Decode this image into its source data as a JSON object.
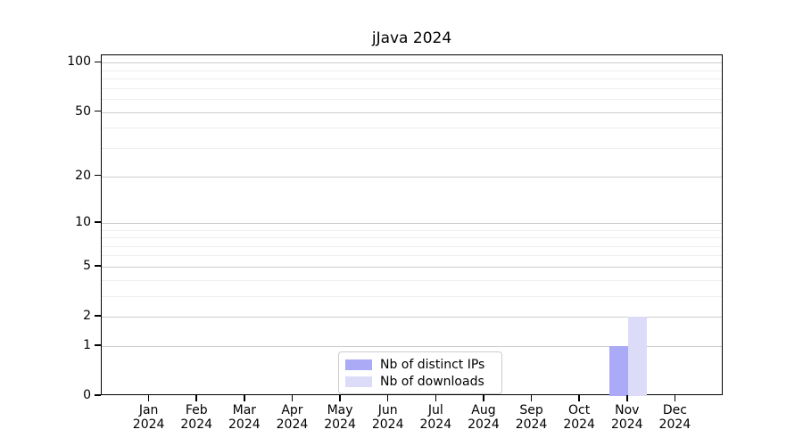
{
  "figure": {
    "background": "#ffffff"
  },
  "chart_data": {
    "type": "bar",
    "title": "jJava 2024",
    "categories": [
      {
        "month": "Jan",
        "year": "2024"
      },
      {
        "month": "Feb",
        "year": "2024"
      },
      {
        "month": "Mar",
        "year": "2024"
      },
      {
        "month": "Apr",
        "year": "2024"
      },
      {
        "month": "May",
        "year": "2024"
      },
      {
        "month": "Jun",
        "year": "2024"
      },
      {
        "month": "Jul",
        "year": "2024"
      },
      {
        "month": "Aug",
        "year": "2024"
      },
      {
        "month": "Sep",
        "year": "2024"
      },
      {
        "month": "Oct",
        "year": "2024"
      },
      {
        "month": "Nov",
        "year": "2024"
      },
      {
        "month": "Dec",
        "year": "2024"
      }
    ],
    "series": [
      {
        "key": "distinct-ips",
        "name": "Nb of distinct IPs",
        "color": "#aaaaf6",
        "values": [
          0,
          0,
          0,
          0,
          0,
          0,
          0,
          0,
          0,
          0,
          1,
          0
        ]
      },
      {
        "key": "downloads",
        "name": "Nb of downloads",
        "color": "#dcdcf8",
        "values": [
          0,
          0,
          0,
          0,
          0,
          0,
          0,
          0,
          0,
          0,
          2,
          0
        ]
      }
    ],
    "y_axis": {
      "scale": "log1p",
      "major_ticks": [
        0,
        1,
        2,
        5,
        10,
        20,
        50,
        100
      ],
      "minor_gridlines": [
        3,
        4,
        6,
        7,
        8,
        9,
        30,
        40,
        60,
        70,
        80,
        90
      ],
      "ylim": [
        0,
        111
      ]
    },
    "grid": "on",
    "legend_position": "lower center"
  },
  "colors": {
    "axis": "#000000",
    "major_grid": "#cccccc",
    "minor_grid": "#eeeeee",
    "legend_border": "#cccccc",
    "text": "#000000"
  }
}
